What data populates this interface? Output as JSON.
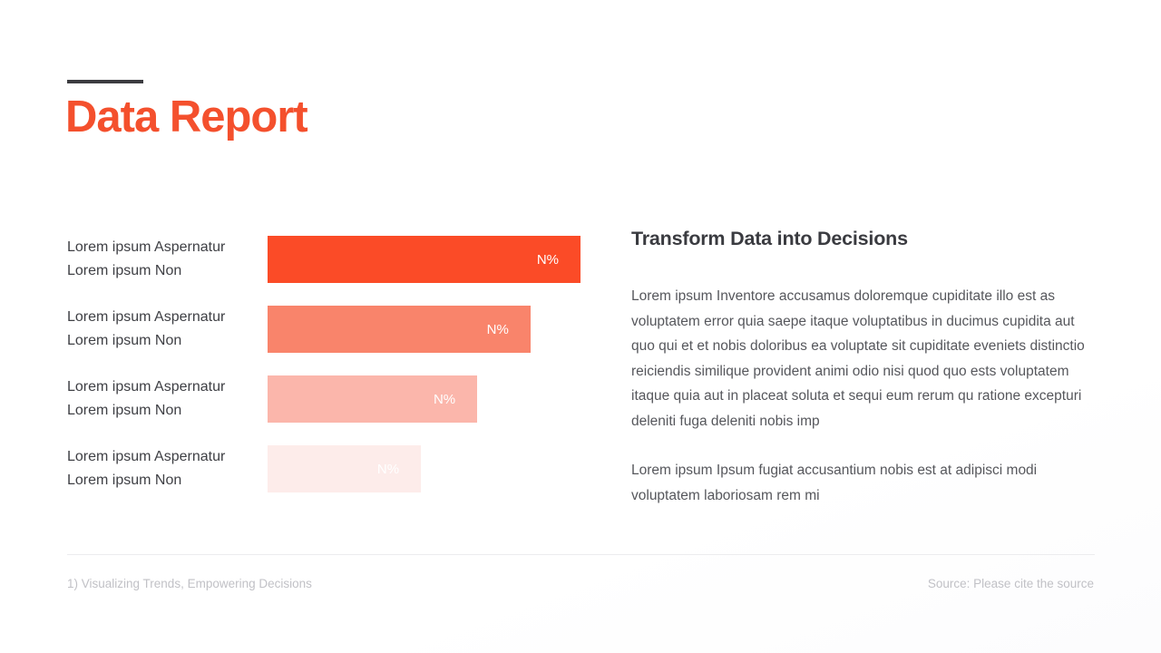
{
  "slide": {
    "title": "Data Report",
    "accent_color": "#F4502D",
    "accent_line_color": "#3C3C40",
    "heading": "Transform Data into Decisions",
    "paragraph1": "Lorem ipsum Inventore accusamus doloremque cupiditate illo est as voluptatem error quia saepe itaque voluptatibus in ducimus cupidita aut quo qui et et nobis doloribus ea voluptate sit cupiditate eveniets distinctio reiciendis similique provident animi odio nisi quod quo ests voluptatem itaque quia aut in placeat soluta et sequi eum rerum qu ratione excepturi deleniti fuga deleniti nobis imp",
    "paragraph2": "Lorem ipsum Ipsum fugiat accusantium nobis est at adipisci modi voluptatem laboriosam rem mi",
    "footer_left": "1) Visualizing Trends, Empowering Decisions",
    "footer_right": "Source: Please cite the source"
  },
  "chart_data": {
    "type": "bar",
    "orientation": "horizontal",
    "value_label_color": "#FFFFFF",
    "rows": [
      {
        "label_line1": "Lorem ipsum Aspernatur",
        "label_line2": "Lorem ipsum Non",
        "value_label": "N%",
        "relative_width": 1.0,
        "color": "#FB4B27"
      },
      {
        "label_line1": "Lorem ipsum Aspernatur",
        "label_line2": "Lorem ipsum Non",
        "value_label": "N%",
        "relative_width": 0.84,
        "color": "#F9846B"
      },
      {
        "label_line1": "Lorem ipsum Aspernatur",
        "label_line2": "Lorem ipsum Non",
        "value_label": "N%",
        "relative_width": 0.67,
        "color": "#FBB6AB"
      },
      {
        "label_line1": "Lorem ipsum Aspernatur",
        "label_line2": "Lorem ipsum Non",
        "value_label": "N%",
        "relative_width": 0.49,
        "color": "#FDECEA"
      }
    ]
  }
}
